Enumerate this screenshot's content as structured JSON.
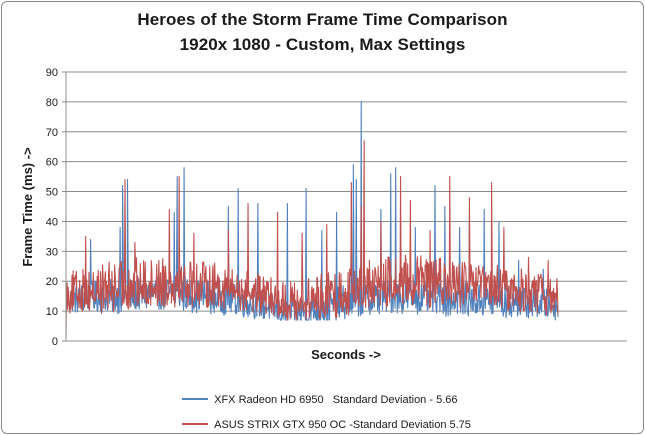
{
  "chart_data": {
    "type": "line",
    "title": "Heroes of the Storm Frame Time Comparison",
    "subtitle": "1920x 1080 - Custom, Max Settings",
    "xlabel": "Seconds ->",
    "ylabel": "Frame Time (ms) ->",
    "ylim": [
      0,
      90
    ],
    "yticks": [
      "0",
      "10",
      "20",
      "30",
      "40",
      "50",
      "60",
      "70",
      "80",
      "90"
    ],
    "grid": true,
    "legend_position": "bottom",
    "series": [
      {
        "name": "XFX Radeon HD 6950   Standard Deviation - 5.66",
        "color": "#4f81bd",
        "baseline_profile": [
          [
            0,
            14,
            5
          ],
          [
            0.1,
            15,
            6
          ],
          [
            0.2,
            16,
            6
          ],
          [
            0.3,
            15,
            6
          ],
          [
            0.4,
            12,
            5
          ],
          [
            0.45,
            9,
            5
          ],
          [
            0.5,
            10,
            6
          ],
          [
            0.6,
            14,
            6
          ],
          [
            0.7,
            15,
            6
          ],
          [
            0.8,
            14,
            6
          ],
          [
            0.9,
            13,
            6
          ],
          [
            1.0,
            12,
            5
          ]
        ],
        "spikes": [
          [
            0.05,
            34
          ],
          [
            0.11,
            38
          ],
          [
            0.115,
            52
          ],
          [
            0.125,
            54
          ],
          [
            0.22,
            43
          ],
          [
            0.226,
            55
          ],
          [
            0.24,
            58
          ],
          [
            0.33,
            45
          ],
          [
            0.35,
            51
          ],
          [
            0.39,
            46
          ],
          [
            0.45,
            46
          ],
          [
            0.488,
            51
          ],
          [
            0.52,
            37
          ],
          [
            0.55,
            43
          ],
          [
            0.58,
            50
          ],
          [
            0.59,
            54
          ],
          [
            0.584,
            59
          ],
          [
            0.6,
            80
          ],
          [
            0.64,
            44
          ],
          [
            0.66,
            56
          ],
          [
            0.67,
            58
          ],
          [
            0.71,
            38
          ],
          [
            0.75,
            52
          ],
          [
            0.77,
            45
          ],
          [
            0.8,
            38
          ],
          [
            0.82,
            40
          ],
          [
            0.85,
            44
          ],
          [
            0.88,
            40
          ],
          [
            0.92,
            27
          ],
          [
            0.97,
            24
          ]
        ]
      },
      {
        "name": "ASUS STRIX GTX 950 OC -Standard Deviation 5.75",
        "color": "#c0504d",
        "baseline_profile": [
          [
            0,
            16,
            7
          ],
          [
            0.1,
            18,
            9
          ],
          [
            0.2,
            20,
            9
          ],
          [
            0.3,
            19,
            8
          ],
          [
            0.4,
            15,
            7
          ],
          [
            0.45,
            13,
            7
          ],
          [
            0.5,
            14,
            8
          ],
          [
            0.6,
            18,
            9
          ],
          [
            0.7,
            20,
            9
          ],
          [
            0.8,
            19,
            8
          ],
          [
            0.9,
            17,
            8
          ],
          [
            1.0,
            15,
            7
          ]
        ],
        "spikes": [
          [
            0.04,
            35
          ],
          [
            0.12,
            54
          ],
          [
            0.14,
            33
          ],
          [
            0.21,
            44
          ],
          [
            0.23,
            55
          ],
          [
            0.26,
            36
          ],
          [
            0.33,
            37
          ],
          [
            0.37,
            46
          ],
          [
            0.43,
            43
          ],
          [
            0.48,
            36
          ],
          [
            0.53,
            39
          ],
          [
            0.58,
            53
          ],
          [
            0.6,
            45
          ],
          [
            0.606,
            67
          ],
          [
            0.64,
            40
          ],
          [
            0.68,
            55
          ],
          [
            0.7,
            47
          ],
          [
            0.74,
            37
          ],
          [
            0.78,
            55
          ],
          [
            0.82,
            48
          ],
          [
            0.865,
            53
          ],
          [
            0.89,
            38
          ],
          [
            0.94,
            28
          ],
          [
            0.98,
            27
          ]
        ]
      }
    ]
  }
}
